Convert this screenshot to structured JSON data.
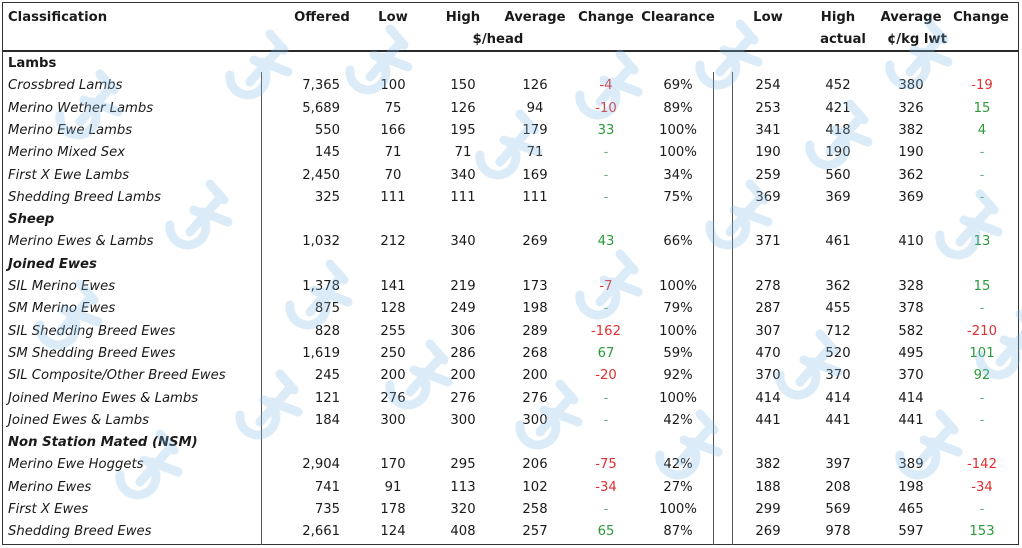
{
  "header": {
    "classification": "Classification",
    "offered": "Offered",
    "low": "Low",
    "high": "High",
    "average": "Average",
    "change": "Change",
    "clearance": "Clearance",
    "low2": "Low",
    "high2": "High",
    "average2": "Average",
    "change2": "Change",
    "unit_head": "$/head",
    "unit_kg_actual": "actual",
    "unit_kg": "¢/kg lwt"
  },
  "rows": [
    {
      "type": "section",
      "label": "Lambs",
      "italic": false
    },
    {
      "type": "row",
      "name": "Crossbred Lambs",
      "offered": "7,365",
      "low": "100",
      "high": "150",
      "avg": "126",
      "change": "-4",
      "change_sign": "neg",
      "clearance": "69%",
      "low2": "254",
      "high2": "452",
      "avg2": "380",
      "change2": "-19",
      "change2_sign": "neg"
    },
    {
      "type": "row",
      "name": "Merino Wether Lambs",
      "offered": "5,689",
      "low": "75",
      "high": "126",
      "avg": "94",
      "change": "-10",
      "change_sign": "neg",
      "clearance": "89%",
      "low2": "253",
      "high2": "421",
      "avg2": "326",
      "change2": "15",
      "change2_sign": "pos"
    },
    {
      "type": "row",
      "name": "Merino Ewe Lambs",
      "offered": "550",
      "low": "166",
      "high": "195",
      "avg": "179",
      "change": "33",
      "change_sign": "pos",
      "clearance": "100%",
      "low2": "341",
      "high2": "418",
      "avg2": "382",
      "change2": "4",
      "change2_sign": "pos"
    },
    {
      "type": "row",
      "name": "Merino Mixed Sex",
      "offered": "145",
      "low": "71",
      "high": "71",
      "avg": "71",
      "change": "-",
      "change_sign": "nil",
      "clearance": "100%",
      "low2": "190",
      "high2": "190",
      "avg2": "190",
      "change2": "-",
      "change2_sign": "nil"
    },
    {
      "type": "row",
      "name": "First X Ewe Lambs",
      "offered": "2,450",
      "low": "70",
      "high": "340",
      "avg": "169",
      "change": "-",
      "change_sign": "nil",
      "clearance": "34%",
      "low2": "259",
      "high2": "560",
      "avg2": "362",
      "change2": "-",
      "change2_sign": "nil"
    },
    {
      "type": "row",
      "name": "Shedding Breed Lambs",
      "offered": "325",
      "low": "111",
      "high": "111",
      "avg": "111",
      "change": "-",
      "change_sign": "nil",
      "clearance": "75%",
      "low2": "369",
      "high2": "369",
      "avg2": "369",
      "change2": "-",
      "change2_sign": "nil"
    },
    {
      "type": "section",
      "label": "Sheep",
      "italic": true
    },
    {
      "type": "row",
      "name": "Merino Ewes & Lambs",
      "offered": "1,032",
      "low": "212",
      "high": "340",
      "avg": "269",
      "change": "43",
      "change_sign": "pos",
      "clearance": "66%",
      "low2": "371",
      "high2": "461",
      "avg2": "410",
      "change2": "13",
      "change2_sign": "pos"
    },
    {
      "type": "section",
      "label": "Joined Ewes",
      "italic": true
    },
    {
      "type": "row",
      "name": "SIL Merino Ewes",
      "offered": "1,378",
      "low": "141",
      "high": "219",
      "avg": "173",
      "change": "-7",
      "change_sign": "neg",
      "clearance": "100%",
      "low2": "278",
      "high2": "362",
      "avg2": "328",
      "change2": "15",
      "change2_sign": "pos"
    },
    {
      "type": "row",
      "name": "SM Merino Ewes",
      "offered": "875",
      "low": "128",
      "high": "249",
      "avg": "198",
      "change": "-",
      "change_sign": "nil",
      "clearance": "79%",
      "low2": "287",
      "high2": "455",
      "avg2": "378",
      "change2": "-",
      "change2_sign": "nil"
    },
    {
      "type": "row",
      "name": "SIL Shedding Breed Ewes",
      "offered": "828",
      "low": "255",
      "high": "306",
      "avg": "289",
      "change": "-162",
      "change_sign": "neg",
      "clearance": "100%",
      "low2": "307",
      "high2": "712",
      "avg2": "582",
      "change2": "-210",
      "change2_sign": "neg"
    },
    {
      "type": "row",
      "name": "SM Shedding Breed Ewes",
      "offered": "1,619",
      "low": "250",
      "high": "286",
      "avg": "268",
      "change": "67",
      "change_sign": "pos",
      "clearance": "59%",
      "low2": "470",
      "high2": "520",
      "avg2": "495",
      "change2": "101",
      "change2_sign": "pos"
    },
    {
      "type": "row",
      "name": "SIL Composite/Other Breed Ewes",
      "offered": "245",
      "low": "200",
      "high": "200",
      "avg": "200",
      "change": "-20",
      "change_sign": "neg",
      "clearance": "92%",
      "low2": "370",
      "high2": "370",
      "avg2": "370",
      "change2": "92",
      "change2_sign": "pos"
    },
    {
      "type": "row",
      "name": "Joined Merino Ewes & Lambs",
      "offered": "121",
      "low": "276",
      "high": "276",
      "avg": "276",
      "change": "-",
      "change_sign": "nil",
      "clearance": "100%",
      "low2": "414",
      "high2": "414",
      "avg2": "414",
      "change2": "-",
      "change2_sign": "nil"
    },
    {
      "type": "row",
      "name": "Joined Ewes & Lambs",
      "offered": "184",
      "low": "300",
      "high": "300",
      "avg": "300",
      "change": "-",
      "change_sign": "nil",
      "clearance": "42%",
      "low2": "441",
      "high2": "441",
      "avg2": "441",
      "change2": "-",
      "change2_sign": "nil"
    },
    {
      "type": "section",
      "label": "Non Station Mated (NSM)",
      "italic": true
    },
    {
      "type": "row",
      "name": "Merino Ewe Hoggets",
      "offered": "2,904",
      "low": "170",
      "high": "295",
      "avg": "206",
      "change": "-75",
      "change_sign": "neg",
      "clearance": "42%",
      "low2": "382",
      "high2": "397",
      "avg2": "389",
      "change2": "-142",
      "change2_sign": "neg"
    },
    {
      "type": "row",
      "name": "Merino Ewes",
      "offered": "741",
      "low": "91",
      "high": "113",
      "avg": "102",
      "change": "-34",
      "change_sign": "neg",
      "clearance": "27%",
      "low2": "188",
      "high2": "208",
      "avg2": "198",
      "change2": "-34",
      "change2_sign": "neg"
    },
    {
      "type": "row",
      "name": "First X Ewes",
      "offered": "735",
      "low": "178",
      "high": "320",
      "avg": "258",
      "change": "-",
      "change_sign": "nil",
      "clearance": "100%",
      "low2": "299",
      "high2": "569",
      "avg2": "465",
      "change2": "-",
      "change2_sign": "nil"
    },
    {
      "type": "row",
      "name": "Shedding Breed Ewes",
      "offered": "2,661",
      "low": "124",
      "high": "408",
      "avg": "257",
      "change": "65",
      "change_sign": "pos",
      "clearance": "87%",
      "low2": "269",
      "high2": "978",
      "avg2": "597",
      "change2": "153",
      "change2_sign": "pos"
    }
  ],
  "colors": {
    "negative": "#e03030",
    "positive": "#2a9a3a",
    "nil": "#6fae7c",
    "watermark": "#7fbde8"
  },
  "watermark_icon": "auction-logo-icon"
}
